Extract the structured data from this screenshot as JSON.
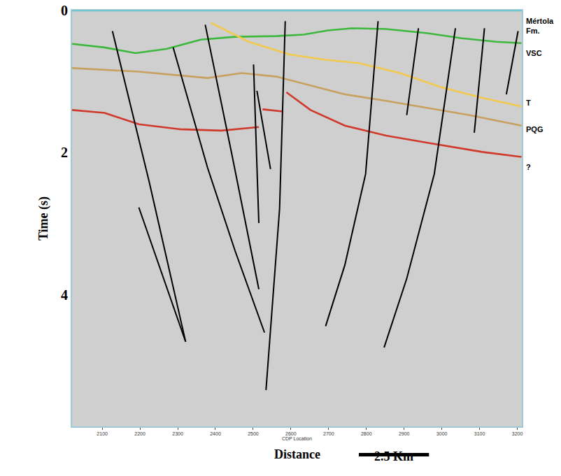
{
  "chart_data": {
    "type": "line",
    "xlabel": "CDP Location",
    "ylabel": "Time (s)",
    "annotations": [
      "Distance"
    ],
    "xlim": [
      2020,
      3212
    ],
    "xticks": [
      2100,
      2200,
      2300,
      2400,
      2500,
      2600,
      2700,
      2800,
      2900,
      3000,
      3100,
      3200
    ],
    "ylim": [
      0,
      5.85
    ],
    "yticks": [
      0,
      2,
      4
    ],
    "grid": false,
    "scale_bar": {
      "label": "2.5 Km",
      "from": 2780,
      "to": 2966
    },
    "formation_labels": [
      {
        "text": "Mértola Fm.",
        "y": 0.22
      },
      {
        "text": "VSC",
        "y": 0.6
      },
      {
        "text": "T",
        "y": 1.3
      },
      {
        "text": "PQG",
        "y": 1.67
      },
      {
        "text": "?",
        "y": 2.2
      }
    ],
    "series": [
      {
        "color": "#4fc3c9",
        "x": [
          2020,
          3212
        ],
        "values": [
          0.0,
          0.0
        ]
      },
      {
        "color": "#3cb83c",
        "x": [
          2020,
          2106,
          2188,
          2270,
          2361,
          2452,
          2561,
          2634,
          2698,
          2761,
          2852,
          2962,
          3053,
          3144,
          3211
        ],
        "values": [
          0.47,
          0.52,
          0.6,
          0.54,
          0.41,
          0.37,
          0.36,
          0.34,
          0.28,
          0.25,
          0.26,
          0.32,
          0.39,
          0.44,
          0.46
        ]
      },
      {
        "color": "#f2c94c",
        "x": [
          2388,
          2488,
          2597,
          2688,
          2780,
          2889,
          2998,
          3107,
          3211
        ],
        "values": [
          0.17,
          0.44,
          0.62,
          0.69,
          0.74,
          0.88,
          1.08,
          1.23,
          1.35
        ]
      },
      {
        "color": "#c8a060",
        "x": [
          2020,
          2197,
          2379,
          2470,
          2561,
          2634,
          2743,
          2852,
          2962,
          3071,
          3211
        ],
        "values": [
          0.81,
          0.86,
          0.95,
          0.88,
          0.93,
          1.03,
          1.18,
          1.27,
          1.37,
          1.47,
          1.62
        ]
      },
      {
        "color": "#d0392b",
        "x": [
          2020,
          2106,
          2197,
          2306,
          2415,
          2515,
          null,
          2525,
          2579,
          null,
          2588,
          2652,
          2743,
          2852,
          2962,
          3107,
          3211
        ],
        "values": [
          1.4,
          1.44,
          1.6,
          1.67,
          1.69,
          1.64,
          null,
          1.39,
          1.42,
          null,
          1.15,
          1.4,
          1.62,
          1.76,
          1.86,
          1.99,
          2.06
        ]
      },
      {
        "color": "#000000",
        "x": [
          2127,
          2224,
          2321
        ],
        "values": [
          0.29,
          2.4,
          4.66
        ]
      },
      {
        "color": "#000000",
        "x": [
          2197,
          2321
        ],
        "values": [
          2.77,
          4.66
        ]
      },
      {
        "color": "#000000",
        "x": [
          2288,
          2379,
          2452,
          2530
        ],
        "values": [
          0.52,
          2.21,
          3.38,
          4.53
        ]
      },
      {
        "color": "#000000",
        "x": [
          2373,
          2443,
          2515
        ],
        "values": [
          0.2,
          2.01,
          3.92
        ]
      },
      {
        "color": "#000000",
        "x": [
          2501,
          2515
        ],
        "values": [
          0.76,
          2.99
        ]
      },
      {
        "color": "#000000",
        "x": [
          2510,
          2546
        ],
        "values": [
          1.13,
          2.23
        ]
      },
      {
        "color": "#000000",
        "x": [
          2585,
          2570,
          2534
        ],
        "values": [
          0.15,
          2.79,
          5.34
        ]
      },
      {
        "color": "#000000",
        "x": [
          2831,
          2798,
          2743,
          2692
        ],
        "values": [
          0.15,
          2.3,
          3.58,
          4.44
        ]
      },
      {
        "color": "#000000",
        "x": [
          2938,
          2907
        ],
        "values": [
          0.25,
          1.47
        ]
      },
      {
        "color": "#000000",
        "x": [
          3036,
          2980,
          2907,
          2847
        ],
        "values": [
          0.25,
          2.3,
          3.77,
          4.74
        ]
      },
      {
        "color": "#000000",
        "x": [
          3113,
          3086
        ],
        "values": [
          0.25,
          1.72
        ]
      },
      {
        "color": "#000000",
        "x": [
          3202,
          3171
        ],
        "values": [
          0.29,
          1.18
        ]
      }
    ]
  }
}
